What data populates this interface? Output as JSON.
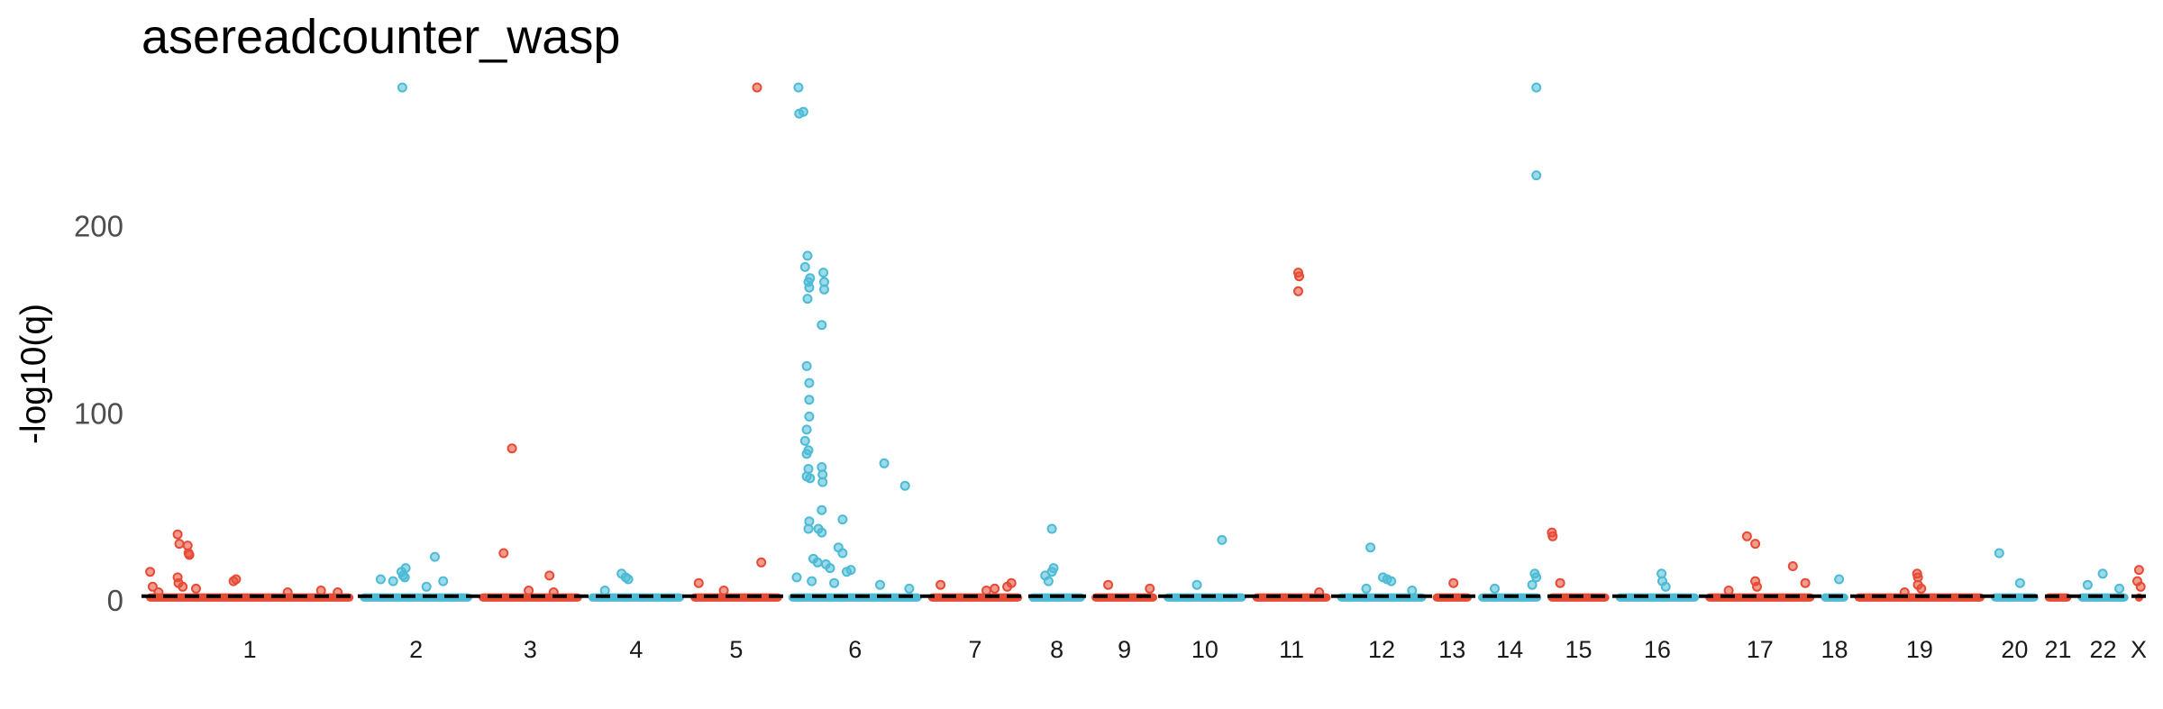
{
  "title": "asereadcounter_wasp",
  "colors": {
    "odd": "#E64B35",
    "even": "#4DBBD5",
    "threshold": "#000000"
  },
  "chart_data": {
    "type": "scatter",
    "title": "asereadcounter_wasp",
    "xlabel": "",
    "ylabel": "-log10(q)",
    "ylim": [
      -2,
      275
    ],
    "yticks": [
      0,
      100,
      200
    ],
    "grid": false,
    "legend": "none",
    "threshold": 2,
    "chromosomes": [
      {
        "label": "1",
        "length": 249
      },
      {
        "label": "2",
        "length": 135
      },
      {
        "label": "3",
        "length": 124
      },
      {
        "label": "4",
        "length": 115
      },
      {
        "label": "5",
        "length": 110
      },
      {
        "label": "6",
        "length": 160
      },
      {
        "label": "7",
        "length": 113
      },
      {
        "label": "8",
        "length": 68
      },
      {
        "label": "9",
        "length": 79
      },
      {
        "label": "10",
        "length": 99
      },
      {
        "label": "11",
        "length": 94
      },
      {
        "label": "12",
        "length": 107
      },
      {
        "label": "13",
        "length": 47
      },
      {
        "label": "14",
        "length": 76
      },
      {
        "label": "15",
        "length": 74
      },
      {
        "label": "16",
        "length": 100
      },
      {
        "label": "17",
        "length": 131
      },
      {
        "label": "18",
        "length": 33
      },
      {
        "label": "19",
        "length": 156
      },
      {
        "label": "20",
        "length": 57
      },
      {
        "label": "21",
        "length": 32
      },
      {
        "label": "22",
        "length": 61
      },
      {
        "label": "X",
        "length": 10
      }
    ],
    "points": [
      {
        "chr": "1",
        "pos": 5,
        "q": 15
      },
      {
        "chr": "1",
        "pos": 8,
        "q": 7
      },
      {
        "chr": "1",
        "pos": 15,
        "q": 4
      },
      {
        "chr": "1",
        "pos": 38,
        "q": 35
      },
      {
        "chr": "1",
        "pos": 40,
        "q": 30
      },
      {
        "chr": "1",
        "pos": 50,
        "q": 29
      },
      {
        "chr": "1",
        "pos": 51,
        "q": 25
      },
      {
        "chr": "1",
        "pos": 52,
        "q": 24
      },
      {
        "chr": "1",
        "pos": 38,
        "q": 12
      },
      {
        "chr": "1",
        "pos": 39,
        "q": 9
      },
      {
        "chr": "1",
        "pos": 44,
        "q": 7
      },
      {
        "chr": "1",
        "pos": 60,
        "q": 6
      },
      {
        "chr": "1",
        "pos": 105,
        "q": 10
      },
      {
        "chr": "1",
        "pos": 108,
        "q": 11
      },
      {
        "chr": "1",
        "pos": 170,
        "q": 4
      },
      {
        "chr": "1",
        "pos": 210,
        "q": 5
      },
      {
        "chr": "1",
        "pos": 230,
        "q": 4
      },
      {
        "chr": "2",
        "pos": 25,
        "q": 11
      },
      {
        "chr": "2",
        "pos": 40,
        "q": 10
      },
      {
        "chr": "2",
        "pos": 50,
        "q": 15
      },
      {
        "chr": "2",
        "pos": 52,
        "q": 13
      },
      {
        "chr": "2",
        "pos": 54,
        "q": 12
      },
      {
        "chr": "2",
        "pos": 55,
        "q": 17
      },
      {
        "chr": "2",
        "pos": 51,
        "q": 274
      },
      {
        "chr": "2",
        "pos": 90,
        "q": 23
      },
      {
        "chr": "2",
        "pos": 100,
        "q": 10
      },
      {
        "chr": "2",
        "pos": 80,
        "q": 7
      },
      {
        "chr": "3",
        "pos": 30,
        "q": 25
      },
      {
        "chr": "3",
        "pos": 40,
        "q": 81
      },
      {
        "chr": "3",
        "pos": 85,
        "q": 13
      },
      {
        "chr": "3",
        "pos": 60,
        "q": 5
      },
      {
        "chr": "3",
        "pos": 90,
        "q": 4
      },
      {
        "chr": "4",
        "pos": 40,
        "q": 14
      },
      {
        "chr": "4",
        "pos": 45,
        "q": 12
      },
      {
        "chr": "4",
        "pos": 48,
        "q": 11
      },
      {
        "chr": "4",
        "pos": 20,
        "q": 5
      },
      {
        "chr": "5",
        "pos": 10,
        "q": 9
      },
      {
        "chr": "5",
        "pos": 40,
        "q": 5
      },
      {
        "chr": "5",
        "pos": 80,
        "q": 274
      },
      {
        "chr": "5",
        "pos": 85,
        "q": 20
      },
      {
        "chr": "6",
        "pos": 12,
        "q": 274
      },
      {
        "chr": "6",
        "pos": 13,
        "q": 260
      },
      {
        "chr": "6",
        "pos": 18,
        "q": 261
      },
      {
        "chr": "6",
        "pos": 23,
        "q": 184
      },
      {
        "chr": "6",
        "pos": 20,
        "q": 178
      },
      {
        "chr": "6",
        "pos": 26,
        "q": 172
      },
      {
        "chr": "6",
        "pos": 24,
        "q": 170
      },
      {
        "chr": "6",
        "pos": 25,
        "q": 167
      },
      {
        "chr": "6",
        "pos": 23,
        "q": 161
      },
      {
        "chr": "6",
        "pos": 42,
        "q": 175
      },
      {
        "chr": "6",
        "pos": 43,
        "q": 170
      },
      {
        "chr": "6",
        "pos": 43,
        "q": 166
      },
      {
        "chr": "6",
        "pos": 40,
        "q": 147
      },
      {
        "chr": "6",
        "pos": 22,
        "q": 125
      },
      {
        "chr": "6",
        "pos": 25,
        "q": 116
      },
      {
        "chr": "6",
        "pos": 25,
        "q": 107
      },
      {
        "chr": "6",
        "pos": 25,
        "q": 98
      },
      {
        "chr": "6",
        "pos": 22,
        "q": 91
      },
      {
        "chr": "6",
        "pos": 20,
        "q": 85
      },
      {
        "chr": "6",
        "pos": 24,
        "q": 80
      },
      {
        "chr": "6",
        "pos": 22,
        "q": 78
      },
      {
        "chr": "6",
        "pos": 24,
        "q": 70
      },
      {
        "chr": "6",
        "pos": 22,
        "q": 66
      },
      {
        "chr": "6",
        "pos": 26,
        "q": 65
      },
      {
        "chr": "6",
        "pos": 40,
        "q": 71
      },
      {
        "chr": "6",
        "pos": 41,
        "q": 67
      },
      {
        "chr": "6",
        "pos": 41,
        "q": 63
      },
      {
        "chr": "6",
        "pos": 40,
        "q": 48
      },
      {
        "chr": "6",
        "pos": 25,
        "q": 42
      },
      {
        "chr": "6",
        "pos": 24,
        "q": 38
      },
      {
        "chr": "6",
        "pos": 36,
        "q": 38
      },
      {
        "chr": "6",
        "pos": 40,
        "q": 36
      },
      {
        "chr": "6",
        "pos": 65,
        "q": 43
      },
      {
        "chr": "6",
        "pos": 30,
        "q": 22
      },
      {
        "chr": "6",
        "pos": 35,
        "q": 20
      },
      {
        "chr": "6",
        "pos": 45,
        "q": 19
      },
      {
        "chr": "6",
        "pos": 50,
        "q": 17
      },
      {
        "chr": "6",
        "pos": 60,
        "q": 28
      },
      {
        "chr": "6",
        "pos": 65,
        "q": 25
      },
      {
        "chr": "6",
        "pos": 70,
        "q": 15
      },
      {
        "chr": "6",
        "pos": 75,
        "q": 16
      },
      {
        "chr": "6",
        "pos": 10,
        "q": 12
      },
      {
        "chr": "6",
        "pos": 28,
        "q": 10
      },
      {
        "chr": "6",
        "pos": 55,
        "q": 9
      },
      {
        "chr": "6",
        "pos": 110,
        "q": 8
      },
      {
        "chr": "6",
        "pos": 145,
        "q": 6
      },
      {
        "chr": "6",
        "pos": 115,
        "q": 73
      },
      {
        "chr": "6",
        "pos": 140,
        "q": 61
      },
      {
        "chr": "7",
        "pos": 15,
        "q": 8
      },
      {
        "chr": "7",
        "pos": 70,
        "q": 5
      },
      {
        "chr": "7",
        "pos": 80,
        "q": 6
      },
      {
        "chr": "7",
        "pos": 95,
        "q": 7
      },
      {
        "chr": "7",
        "pos": 100,
        "q": 9
      },
      {
        "chr": "8",
        "pos": 20,
        "q": 13
      },
      {
        "chr": "8",
        "pos": 24,
        "q": 10
      },
      {
        "chr": "8",
        "pos": 28,
        "q": 15
      },
      {
        "chr": "8",
        "pos": 30,
        "q": 17
      },
      {
        "chr": "8",
        "pos": 28,
        "q": 38
      },
      {
        "chr": "9",
        "pos": 20,
        "q": 8
      },
      {
        "chr": "9",
        "pos": 70,
        "q": 6
      },
      {
        "chr": "10",
        "pos": 40,
        "q": 8
      },
      {
        "chr": "10",
        "pos": 70,
        "q": 32
      },
      {
        "chr": "11",
        "pos": 55,
        "q": 175
      },
      {
        "chr": "11",
        "pos": 56,
        "q": 173
      },
      {
        "chr": "11",
        "pos": 55,
        "q": 165
      },
      {
        "chr": "11",
        "pos": 80,
        "q": 4
      },
      {
        "chr": "12",
        "pos": 40,
        "q": 28
      },
      {
        "chr": "12",
        "pos": 55,
        "q": 12
      },
      {
        "chr": "12",
        "pos": 60,
        "q": 11
      },
      {
        "chr": "12",
        "pos": 65,
        "q": 10
      },
      {
        "chr": "12",
        "pos": 35,
        "q": 6
      },
      {
        "chr": "12",
        "pos": 90,
        "q": 5
      },
      {
        "chr": "13",
        "pos": 25,
        "q": 9
      },
      {
        "chr": "14",
        "pos": 20,
        "q": 6
      },
      {
        "chr": "14",
        "pos": 70,
        "q": 274
      },
      {
        "chr": "14",
        "pos": 70,
        "q": 227
      },
      {
        "chr": "14",
        "pos": 68,
        "q": 14
      },
      {
        "chr": "14",
        "pos": 70,
        "q": 12
      },
      {
        "chr": "14",
        "pos": 65,
        "q": 8
      },
      {
        "chr": "15",
        "pos": 5,
        "q": 36
      },
      {
        "chr": "15",
        "pos": 6,
        "q": 34
      },
      {
        "chr": "15",
        "pos": 15,
        "q": 9
      },
      {
        "chr": "16",
        "pos": 55,
        "q": 14
      },
      {
        "chr": "16",
        "pos": 56,
        "q": 10
      },
      {
        "chr": "16",
        "pos": 60,
        "q": 7
      },
      {
        "chr": "17",
        "pos": 28,
        "q": 5
      },
      {
        "chr": "17",
        "pos": 50,
        "q": 34
      },
      {
        "chr": "17",
        "pos": 60,
        "q": 30
      },
      {
        "chr": "17",
        "pos": 60,
        "q": 10
      },
      {
        "chr": "17",
        "pos": 62,
        "q": 7
      },
      {
        "chr": "17",
        "pos": 105,
        "q": 18
      },
      {
        "chr": "17",
        "pos": 120,
        "q": 9
      },
      {
        "chr": "18",
        "pos": 22,
        "q": 11
      },
      {
        "chr": "19",
        "pos": 75,
        "q": 14
      },
      {
        "chr": "19",
        "pos": 76,
        "q": 12
      },
      {
        "chr": "19",
        "pos": 76,
        "q": 8
      },
      {
        "chr": "19",
        "pos": 80,
        "q": 6
      },
      {
        "chr": "19",
        "pos": 60,
        "q": 4
      },
      {
        "chr": "20",
        "pos": 10,
        "q": 25
      },
      {
        "chr": "20",
        "pos": 35,
        "q": 9
      },
      {
        "chr": "22",
        "pos": 12,
        "q": 8
      },
      {
        "chr": "22",
        "pos": 30,
        "q": 14
      },
      {
        "chr": "22",
        "pos": 50,
        "q": 6
      },
      {
        "chr": "X",
        "pos": 5,
        "q": 16
      },
      {
        "chr": "X",
        "pos": 3,
        "q": 10
      },
      {
        "chr": "X",
        "pos": 7,
        "q": 7
      }
    ]
  }
}
